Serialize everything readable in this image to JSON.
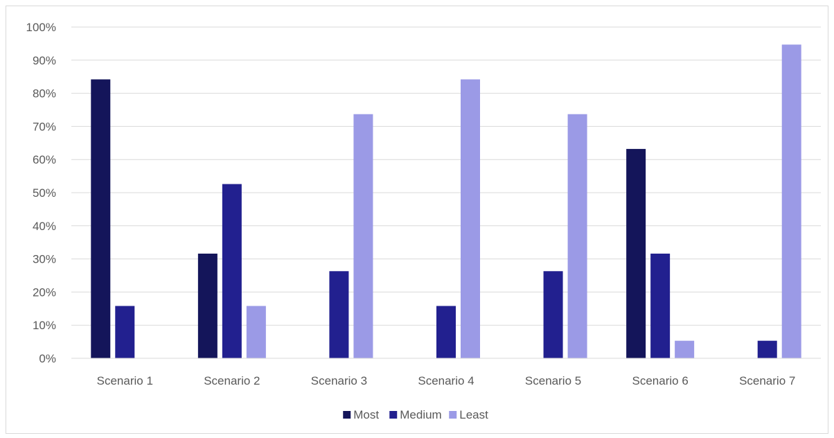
{
  "chart_data": {
    "type": "bar",
    "categories": [
      "Scenario 1",
      "Scenario 2",
      "Scenario 3",
      "Scenario 4",
      "Scenario 5",
      "Scenario 6",
      "Scenario 7"
    ],
    "series": [
      {
        "name": "Most",
        "values": [
          84.2,
          31.6,
          0,
          0,
          0,
          63.2,
          0
        ]
      },
      {
        "name": "Medium",
        "values": [
          15.8,
          52.6,
          26.3,
          15.8,
          26.3,
          31.6,
          5.3
        ]
      },
      {
        "name": "Least",
        "values": [
          0,
          15.8,
          73.7,
          84.2,
          73.7,
          5.3,
          94.7
        ]
      }
    ],
    "ylim": [
      0,
      100
    ],
    "yticks": [
      "0%",
      "10%",
      "20%",
      "30%",
      "40%",
      "50%",
      "60%",
      "70%",
      "80%",
      "90%",
      "100%"
    ],
    "grid": true,
    "legend_position": "bottom",
    "colors": [
      "#14155a",
      "#22208f",
      "#9b9ae6"
    ]
  }
}
